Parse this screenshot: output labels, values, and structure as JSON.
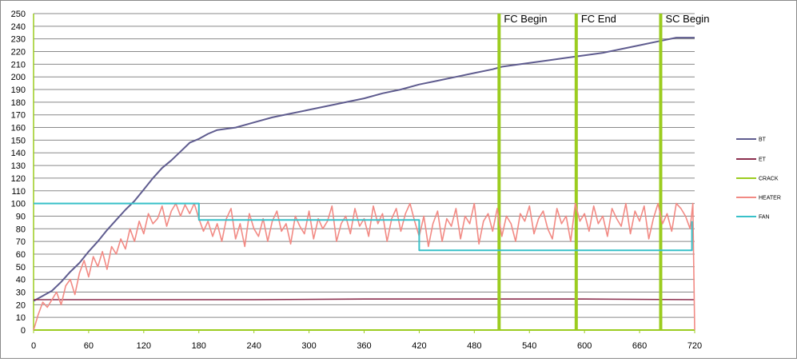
{
  "chart_data": {
    "type": "line",
    "title": "",
    "xlabel": "",
    "ylabel": "",
    "xlim": [
      0,
      720
    ],
    "ylim": [
      0,
      250
    ],
    "x_ticks": [
      0,
      60,
      120,
      180,
      240,
      300,
      360,
      420,
      480,
      540,
      600,
      660,
      720
    ],
    "y_ticks": [
      0,
      10,
      20,
      30,
      40,
      50,
      60,
      70,
      80,
      90,
      100,
      110,
      120,
      130,
      140,
      150,
      160,
      170,
      180,
      190,
      200,
      210,
      220,
      230,
      240,
      250
    ],
    "grid": "horizontal",
    "legend_position": "right",
    "colors": {
      "BT": "#5f5c8f",
      "ET": "#8b2f4e",
      "CRACK": "#9bcc1f",
      "HEATER": "#f28a84",
      "FAN": "#39c1c9",
      "axis": "#9bcc1f",
      "grid": "#898989"
    },
    "series": [
      {
        "name": "BT",
        "x": [
          0,
          10,
          20,
          30,
          40,
          50,
          60,
          70,
          80,
          90,
          100,
          110,
          120,
          130,
          140,
          150,
          160,
          170,
          180,
          190,
          200,
          210,
          220,
          240,
          260,
          280,
          300,
          320,
          340,
          360,
          380,
          400,
          420,
          440,
          460,
          480,
          500,
          510,
          520,
          540,
          560,
          580,
          600,
          620,
          640,
          660,
          680,
          700,
          710,
          720
        ],
        "y": [
          23,
          27,
          31,
          38,
          46,
          53,
          62,
          70,
          79,
          87,
          95,
          102,
          111,
          120,
          128,
          134,
          141,
          148,
          151,
          155,
          158,
          159,
          160,
          164,
          168,
          171,
          174,
          177,
          180,
          183,
          187,
          190,
          194,
          197,
          200,
          203,
          206,
          208,
          209,
          211,
          213,
          215,
          217,
          219,
          222,
          225,
          228,
          231,
          231,
          231
        ]
      },
      {
        "name": "ET",
        "x": [
          0,
          120,
          240,
          360,
          480,
          600,
          720
        ],
        "y": [
          24,
          24,
          24,
          24.5,
          24.5,
          24.5,
          24
        ]
      },
      {
        "name": "CRACK",
        "x": [
          507,
          591,
          683
        ],
        "y": [
          250,
          250,
          250
        ],
        "labels": [
          "FC Begin",
          "FC End",
          "SC Begin"
        ]
      },
      {
        "name": "HEATER",
        "x": [
          0,
          5,
          10,
          15,
          20,
          25,
          30,
          35,
          40,
          45,
          50,
          55,
          60,
          65,
          70,
          75,
          80,
          85,
          90,
          95,
          100,
          105,
          110,
          115,
          120,
          125,
          130,
          135,
          140,
          145,
          150,
          155,
          160,
          165,
          170,
          175,
          180,
          185,
          190,
          195,
          200,
          205,
          210,
          215,
          220,
          225,
          230,
          235,
          240,
          245,
          250,
          255,
          260,
          265,
          270,
          275,
          280,
          285,
          290,
          295,
          300,
          305,
          310,
          315,
          320,
          325,
          330,
          335,
          340,
          345,
          350,
          355,
          360,
          365,
          370,
          375,
          380,
          385,
          390,
          395,
          400,
          405,
          410,
          415,
          420,
          425,
          430,
          435,
          440,
          445,
          450,
          455,
          460,
          465,
          470,
          475,
          480,
          485,
          490,
          495,
          500,
          505,
          510,
          515,
          520,
          525,
          530,
          535,
          540,
          545,
          550,
          555,
          560,
          565,
          570,
          575,
          580,
          585,
          590,
          595,
          600,
          605,
          610,
          615,
          620,
          625,
          630,
          635,
          640,
          645,
          650,
          655,
          660,
          665,
          670,
          675,
          680,
          685,
          690,
          695,
          700,
          705,
          710,
          715,
          718,
          720
        ],
        "y": [
          0,
          12,
          22,
          18,
          24,
          30,
          20,
          35,
          40,
          28,
          45,
          55,
          42,
          58,
          50,
          62,
          48,
          66,
          60,
          72,
          64,
          80,
          70,
          86,
          76,
          92,
          84,
          88,
          98,
          82,
          94,
          100,
          90,
          99,
          92,
          100,
          88,
          78,
          86,
          74,
          84,
          70,
          88,
          96,
          72,
          84,
          66,
          92,
          80,
          74,
          88,
          70,
          86,
          94,
          78,
          84,
          68,
          90,
          82,
          76,
          94,
          72,
          88,
          80,
          86,
          98,
          70,
          84,
          90,
          76,
          96,
          82,
          88,
          74,
          98,
          84,
          92,
          70,
          88,
          96,
          78,
          92,
          100,
          86,
          74,
          90,
          66,
          84,
          94,
          70,
          88,
          82,
          96,
          72,
          90,
          84,
          100,
          68,
          86,
          92,
          78,
          96,
          74,
          90,
          84,
          70,
          92,
          86,
          98,
          76,
          88,
          94,
          80,
          72,
          96,
          84,
          90,
          70,
          100,
          86,
          92,
          78,
          98,
          84,
          90,
          74,
          96,
          88,
          82,
          100,
          76,
          94,
          86,
          98,
          72,
          88,
          100,
          84,
          92,
          78,
          100,
          96,
          90,
          80,
          100,
          0
        ]
      },
      {
        "name": "FAN",
        "x": [
          0,
          180,
          180,
          420,
          420,
          717,
          717
        ],
        "y": [
          100,
          100,
          87,
          87,
          63,
          63,
          86
        ]
      }
    ],
    "annotations": [
      {
        "text": "FC Begin",
        "x": 507
      },
      {
        "text": "FC End",
        "x": 591
      },
      {
        "text": "SC Begin",
        "x": 683
      }
    ]
  }
}
